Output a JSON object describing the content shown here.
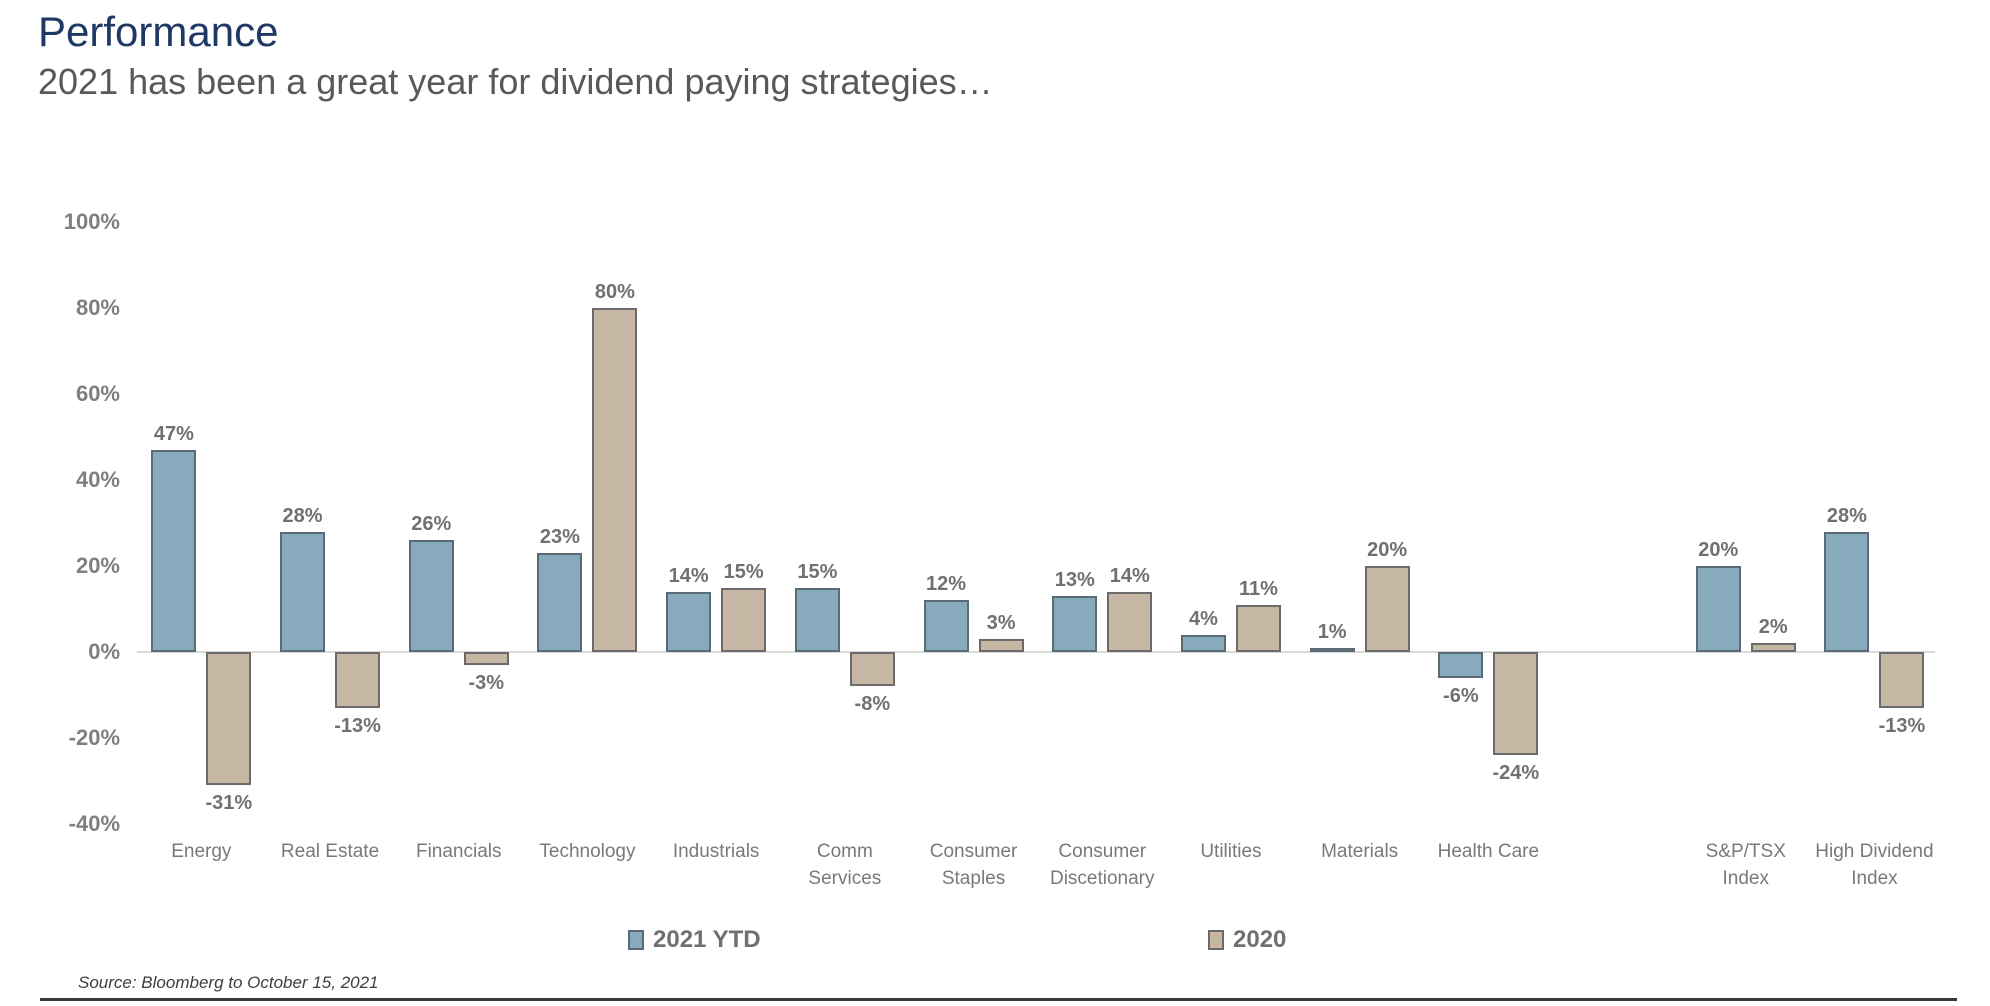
{
  "page": {
    "title": "Performance",
    "subtitle": "2021 has been a great year for dividend paying strategies…",
    "source": "Source: Bloomberg to October 15, 2021"
  },
  "colors": {
    "title": "#1F3864",
    "subtitle": "#595959",
    "axis_tick_label": "#7D7F82",
    "data_label": "#6E7074",
    "category_label": "#77797C",
    "baseline": "#DADADA",
    "footer_rule": "#383838",
    "series_fills": [
      "#87AABD",
      "#C5B7A3"
    ],
    "series_strokes": [
      "#5B6B75",
      "#6B6B6B"
    ]
  },
  "chart_data": {
    "type": "bar",
    "title": "Performance",
    "subtitle": "2021 has been a great year for dividend paying strategies…",
    "categories": [
      {
        "label": "Energy",
        "lines": [
          "Energy"
        ],
        "group": "sector"
      },
      {
        "label": "Real Estate",
        "lines": [
          "Real Estate"
        ],
        "group": "sector"
      },
      {
        "label": "Financials",
        "lines": [
          "Financials"
        ],
        "group": "sector"
      },
      {
        "label": "Technology",
        "lines": [
          "Technology"
        ],
        "group": "sector"
      },
      {
        "label": "Industrials",
        "lines": [
          "Industrials"
        ],
        "group": "sector"
      },
      {
        "label": "Comm Services",
        "lines": [
          "Comm",
          "Services"
        ],
        "group": "sector"
      },
      {
        "label": "Consumer Staples",
        "lines": [
          "Consumer",
          "Staples"
        ],
        "group": "sector"
      },
      {
        "label": "Consumer Discetionary",
        "lines": [
          "Consumer",
          "Discetionary"
        ],
        "group": "sector"
      },
      {
        "label": "Utilities",
        "lines": [
          "Utilities"
        ],
        "group": "sector"
      },
      {
        "label": "Materials",
        "lines": [
          "Materials"
        ],
        "group": "sector"
      },
      {
        "label": "Health Care",
        "lines": [
          "Health Care"
        ],
        "group": "sector"
      },
      {
        "label": "S&P/TSX Index",
        "lines": [
          "S&P/TSX",
          "Index"
        ],
        "group": "index"
      },
      {
        "label": "High Dividend Index",
        "lines": [
          "High Dividend",
          "Index"
        ],
        "group": "index"
      }
    ],
    "series": [
      {
        "name": "2021 YTD",
        "values": [
          47,
          28,
          26,
          23,
          14,
          15,
          12,
          13,
          4,
          1,
          -6,
          20,
          28
        ]
      },
      {
        "name": "2020",
        "values": [
          -31,
          -13,
          -3,
          80,
          15,
          -8,
          3,
          14,
          11,
          20,
          -24,
          2,
          -13
        ]
      }
    ],
    "value_label_format": "{v}%",
    "xlabel": "",
    "ylabel": "",
    "ylim": [
      -40,
      100
    ],
    "ytick_step": 20,
    "yticks": [
      {
        "value": 100,
        "label": "100%"
      },
      {
        "value": 80,
        "label": "80%"
      },
      {
        "value": 60,
        "label": "60%"
      },
      {
        "value": 40,
        "label": "40%"
      },
      {
        "value": 20,
        "label": "20%"
      },
      {
        "value": 0,
        "label": "0%"
      },
      {
        "value": -20,
        "label": "-20%"
      },
      {
        "value": -40,
        "label": "-40%"
      }
    ],
    "grid": false,
    "legend_position": "bottom"
  },
  "legend": {
    "items": [
      {
        "label": "2021 YTD"
      },
      {
        "label": "2020"
      }
    ]
  }
}
